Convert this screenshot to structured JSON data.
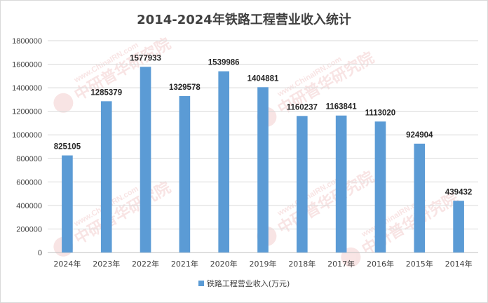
{
  "chart_data": {
    "type": "bar",
    "title": "2014-2024年铁路工程营业收入统计",
    "categories": [
      "2024年",
      "2023年",
      "2022年",
      "2021年",
      "2020年",
      "2019年",
      "2018年",
      "2017年",
      "2016年",
      "2015年",
      "2014年"
    ],
    "series": [
      {
        "name": "铁路工程营业收入(万元)",
        "values": [
          825105,
          1285379,
          1577933,
          1329578,
          1539986,
          1404881,
          1160237,
          1163841,
          1113020,
          924904,
          439432
        ],
        "color": "#5b9bd5"
      }
    ],
    "ylim": [
      0,
      1800000
    ],
    "yticks": [
      0,
      200000,
      400000,
      600000,
      800000,
      1000000,
      1200000,
      1400000,
      1600000,
      1800000
    ],
    "grid": true,
    "legend_position": "bottom",
    "xlabel": "",
    "ylabel": ""
  },
  "colors": {
    "bar": "#5b9bd5",
    "grid": "#d9d9d9",
    "axis": "#bfbfbf",
    "watermark": "#e8a0a0"
  },
  "watermark": {
    "text": "中研普华研究院",
    "subtext": "www.ChinaIRN.com"
  }
}
